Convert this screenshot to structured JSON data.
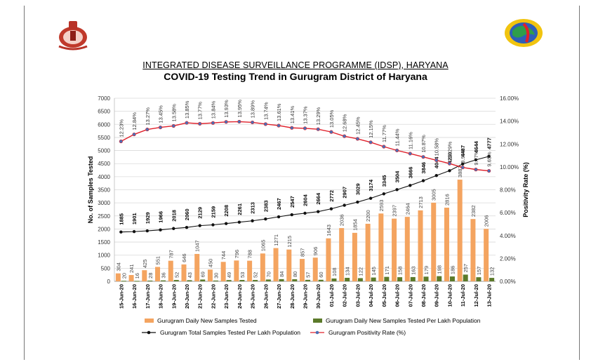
{
  "header": {
    "title": "INTEGRATED DISEASE SURVEILLANCE PROGRAMME (IDSP), HARYANA",
    "subtitle": "COVID-19 Testing Trend in Gurugram District of Haryana"
  },
  "logos": {
    "left": "haryana-emblem-icon",
    "right": "idsp-globe-logo-icon"
  },
  "colors": {
    "orange_bar": "#f4a460",
    "green_bar": "#5b7a2a",
    "black_line": "#111111",
    "red_line": "#e0202a",
    "blue_marker": "#4a6fb5",
    "grid": "#d9d9d9"
  },
  "chart_data": {
    "type": "bar",
    "title": "COVID-19 Testing Trend in Gurugram District of Haryana",
    "ylabel": "No. of Samples Tested",
    "y2label": "Positivity Rate (%)",
    "ylim": [
      0,
      7000
    ],
    "y_ticks": [
      0,
      500,
      1000,
      1500,
      2000,
      2500,
      3000,
      3500,
      4000,
      4500,
      5000,
      5500,
      6000,
      6500,
      7000
    ],
    "y2lim": [
      0,
      16
    ],
    "y2_ticks": [
      "0.00%",
      "2.00%",
      "4.00%",
      "6.00%",
      "8.00%",
      "10.00%",
      "12.00%",
      "14.00%",
      "16.00%"
    ],
    "grid": true,
    "legend_position": "bottom",
    "categories": [
      "15-Jun-20",
      "16-Jun-20",
      "17-Jun-20",
      "18-Jun-20",
      "19-Jun-20",
      "20-Jun-20",
      "21-Jun-20",
      "22-Jun-20",
      "23-Jun-20",
      "24-Jun-20",
      "25-Jun-20",
      "26-Jun-20",
      "27-Jun-20",
      "28-Jun-20",
      "29-Jun-20",
      "30-Jun-20",
      "01-Jul-20",
      "02-Jul-20",
      "03-Jul-20",
      "04-Jul-20",
      "05-Jul-20",
      "06-Jul-20",
      "07-Jul-20",
      "08-Jul-20",
      "09-Jul-20",
      "10-Jul-20",
      "11-Jul-20",
      "12-Jul-20",
      "13-Jul-20"
    ],
    "series": [
      {
        "name": "Gurugram Daily New Samples Tested",
        "kind": "bar",
        "axis": "left",
        "values": [
          304,
          241,
          425,
          551,
          787,
          646,
          1047,
          450,
          744,
          796,
          788,
          1065,
          1271,
          1215,
          857,
          906,
          1643,
          2036,
          1854,
          2200,
          2593,
          2397,
          2464,
          2713,
          3005,
          2816,
          3887,
          2382,
          2006
        ]
      },
      {
        "name": "Gurugram Daily New Samples Tested Per Lakh Population",
        "kind": "bar",
        "axis": "left",
        "values": [
          20,
          16,
          28,
          36,
          52,
          43,
          69,
          30,
          49,
          53,
          52,
          70,
          84,
          80,
          57,
          60,
          108,
          134,
          122,
          145,
          171,
          158,
          163,
          179,
          198,
          186,
          257,
          157,
          132
        ]
      },
      {
        "name": "Gurugram Total Samples Tested Per Lakh Population",
        "kind": "line",
        "axis": "left",
        "values": [
          1885,
          1901,
          1929,
          1966,
          2018,
          2060,
          2129,
          2159,
          2208,
          2261,
          2313,
          2383,
          2467,
          2547,
          2604,
          2664,
          2772,
          2907,
          3029,
          3174,
          3345,
          3504,
          3666,
          3846,
          4044,
          4230,
          4487,
          4644,
          4777
        ]
      },
      {
        "name": "Gurugram Positivity Rate (%)",
        "kind": "line",
        "axis": "right",
        "values": [
          12.23,
          12.84,
          13.27,
          13.45,
          13.58,
          13.85,
          13.77,
          13.84,
          13.93,
          13.95,
          13.89,
          13.74,
          13.61,
          13.41,
          13.37,
          13.29,
          13.05,
          12.68,
          12.45,
          12.15,
          11.77,
          11.44,
          11.16,
          10.87,
          10.58,
          10.29,
          9.95,
          9.77,
          9.65
        ],
        "labels": [
          "12.23%",
          "12.84%",
          "13.27%",
          "13.45%",
          "13.58%",
          "13.85%",
          "13.77%",
          "13.84%",
          "13.93%",
          "13.95%",
          "13.89%",
          "13.74%",
          "13.61%",
          "13.41%",
          "13.37%",
          "13.29%",
          "13.05%",
          "12.68%",
          "12.45%",
          "12.15%",
          "11.77%",
          "11.44%",
          "11.16%",
          "10.87%",
          "10.58%",
          "10.29%",
          "9.95%",
          "9.77%",
          "9.65%"
        ]
      }
    ]
  }
}
